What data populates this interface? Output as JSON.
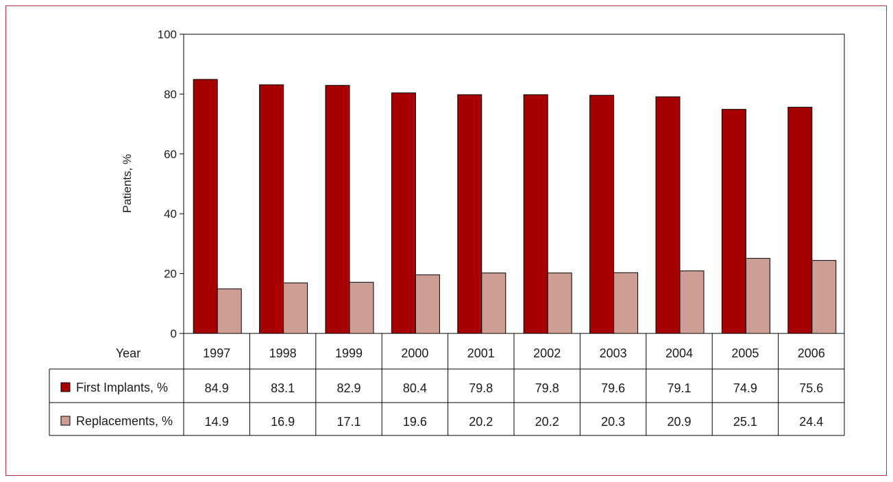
{
  "chart_data": {
    "type": "bar",
    "ylabel": "Patients, %",
    "ylim": [
      0,
      100
    ],
    "yticks": [
      0,
      20,
      40,
      60,
      80,
      100
    ],
    "grid": false,
    "legend": "table-rows",
    "categories_header": "Year",
    "categories": [
      "1997",
      "1998",
      "1999",
      "2000",
      "2001",
      "2002",
      "2003",
      "2004",
      "2005",
      "2006"
    ],
    "series": [
      {
        "name": "First Implants, %",
        "color": "#a80000",
        "values": [
          84.9,
          83.1,
          82.9,
          80.4,
          79.8,
          79.8,
          79.6,
          79.1,
          74.9,
          75.6
        ],
        "labels": [
          "84.9",
          "83.1",
          "82.9",
          "80.4",
          "79.8",
          "79.8",
          "79.6",
          "79.1",
          "74.9",
          "75.6"
        ]
      },
      {
        "name": "Replacements, %",
        "color": "#cc9e94",
        "values": [
          14.9,
          16.9,
          17.1,
          19.6,
          20.2,
          20.2,
          20.3,
          20.9,
          25.1,
          24.4
        ],
        "labels": [
          "14.9",
          "16.9",
          "17.1",
          "19.6",
          "20.2",
          "20.2",
          "20.3",
          "20.9",
          "25.1",
          "24.4"
        ]
      }
    ]
  }
}
